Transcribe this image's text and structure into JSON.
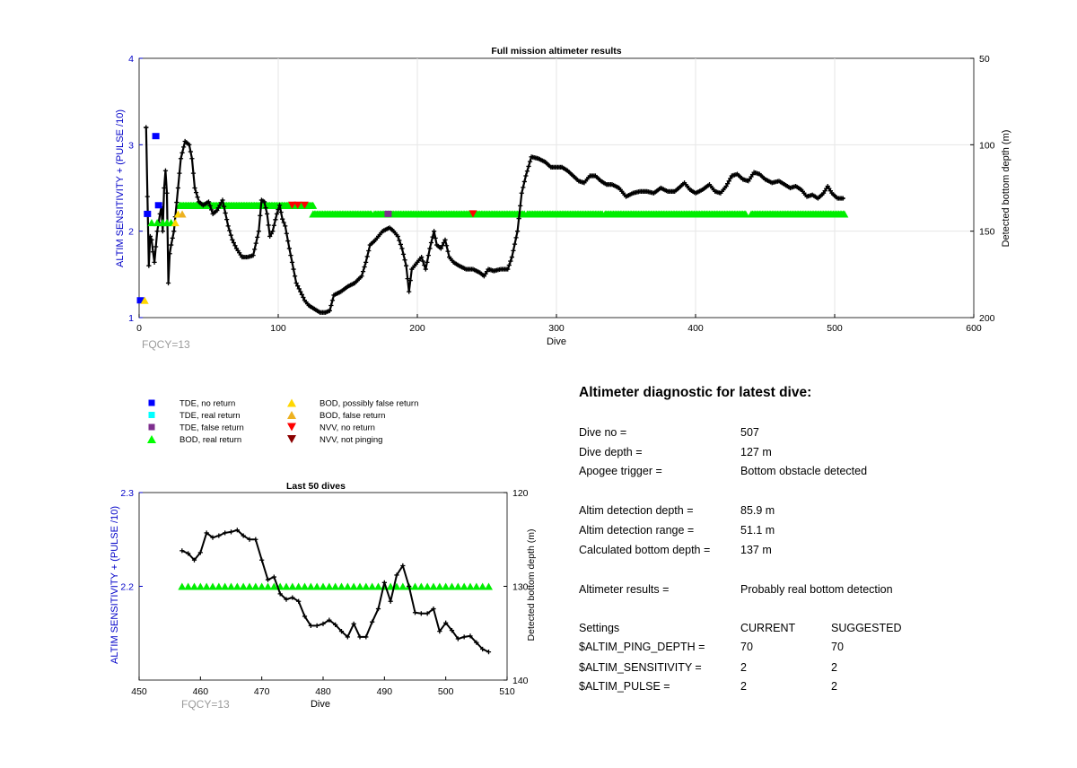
{
  "chart_data": [
    {
      "id": "full",
      "type": "scatter+line",
      "title": "Full mission altimeter results",
      "xlabel": "Dive",
      "ylabel": "ALTIM SENSITIVITY + (PULSE /10)",
      "y2label": "Detected bottom depth (m)",
      "xlim": [
        0,
        600
      ],
      "ylim": [
        1,
        4
      ],
      "y2lim": [
        50,
        200
      ],
      "y2_reversed": true,
      "xticks": [
        0,
        100,
        200,
        300,
        400,
        500,
        600
      ],
      "yticks": [
        1,
        2,
        3,
        4
      ],
      "y2ticks": [
        50,
        100,
        150,
        200
      ],
      "grid": true,
      "annotation": "FQCY=13",
      "bottom_depth_line": [
        [
          5,
          90
        ],
        [
          7,
          170
        ],
        [
          8,
          153
        ],
        [
          9,
          155
        ],
        [
          10,
          162
        ],
        [
          11,
          168
        ],
        [
          13,
          150
        ],
        [
          15,
          140
        ],
        [
          16,
          136
        ],
        [
          17,
          150
        ],
        [
          18,
          125
        ],
        [
          19,
          115
        ],
        [
          20,
          128
        ],
        [
          21,
          180
        ],
        [
          22,
          163
        ],
        [
          23,
          158
        ],
        [
          25,
          150
        ],
        [
          28,
          125
        ],
        [
          30,
          108
        ],
        [
          33,
          98
        ],
        [
          36,
          100
        ],
        [
          38,
          108
        ],
        [
          40,
          125
        ],
        [
          43,
          133
        ],
        [
          46,
          135
        ],
        [
          50,
          133
        ],
        [
          53,
          140
        ],
        [
          56,
          138
        ],
        [
          60,
          132
        ],
        [
          64,
          147
        ],
        [
          67,
          155
        ],
        [
          70,
          160
        ],
        [
          74,
          165
        ],
        [
          78,
          165
        ],
        [
          82,
          164
        ],
        [
          86,
          150
        ],
        [
          88,
          132
        ],
        [
          90,
          133
        ],
        [
          92,
          140
        ],
        [
          94,
          153
        ],
        [
          96,
          150
        ],
        [
          99,
          140
        ],
        [
          101,
          135
        ],
        [
          103,
          143
        ],
        [
          105,
          147
        ],
        [
          108,
          160
        ],
        [
          110,
          168
        ],
        [
          113,
          180
        ],
        [
          116,
          185
        ],
        [
          119,
          190
        ],
        [
          122,
          193
        ],
        [
          126,
          195
        ],
        [
          130,
          197
        ],
        [
          134,
          197
        ],
        [
          137,
          196
        ],
        [
          140,
          187
        ],
        [
          145,
          185
        ],
        [
          150,
          182
        ],
        [
          155,
          180
        ],
        [
          160,
          176
        ],
        [
          163,
          168
        ],
        [
          166,
          158
        ],
        [
          170,
          155
        ],
        [
          175,
          150
        ],
        [
          180,
          148
        ],
        [
          183,
          150
        ],
        [
          186,
          153
        ],
        [
          189,
          160
        ],
        [
          192,
          170
        ],
        [
          194,
          185
        ],
        [
          196,
          172
        ],
        [
          200,
          168
        ],
        [
          203,
          165
        ],
        [
          206,
          172
        ],
        [
          209,
          160
        ],
        [
          212,
          150
        ],
        [
          214,
          158
        ],
        [
          217,
          160
        ],
        [
          220,
          155
        ],
        [
          223,
          165
        ],
        [
          226,
          168
        ],
        [
          230,
          170
        ],
        [
          235,
          172
        ],
        [
          240,
          172
        ],
        [
          245,
          174
        ],
        [
          248,
          176
        ],
        [
          251,
          172
        ],
        [
          255,
          173
        ],
        [
          260,
          172
        ],
        [
          265,
          172
        ],
        [
          268,
          165
        ],
        [
          272,
          150
        ],
        [
          275,
          128
        ],
        [
          278,
          118
        ],
        [
          282,
          107
        ],
        [
          287,
          108
        ],
        [
          292,
          110
        ],
        [
          296,
          113
        ],
        [
          300,
          113
        ],
        [
          304,
          113
        ],
        [
          308,
          115
        ],
        [
          312,
          118
        ],
        [
          316,
          121
        ],
        [
          320,
          122
        ],
        [
          324,
          118
        ],
        [
          328,
          118
        ],
        [
          332,
          121
        ],
        [
          336,
          123
        ],
        [
          340,
          123
        ],
        [
          345,
          125
        ],
        [
          350,
          130
        ],
        [
          355,
          128
        ],
        [
          360,
          127
        ],
        [
          365,
          127
        ],
        [
          370,
          128
        ],
        [
          375,
          125
        ],
        [
          380,
          127
        ],
        [
          385,
          127
        ],
        [
          388,
          125
        ],
        [
          392,
          122
        ],
        [
          396,
          126
        ],
        [
          400,
          128
        ],
        [
          405,
          126
        ],
        [
          410,
          123
        ],
        [
          414,
          127
        ],
        [
          418,
          128
        ],
        [
          422,
          124
        ],
        [
          426,
          118
        ],
        [
          430,
          117
        ],
        [
          434,
          120
        ],
        [
          438,
          121
        ],
        [
          442,
          116
        ],
        [
          446,
          117
        ],
        [
          450,
          120
        ],
        [
          455,
          122
        ],
        [
          460,
          121
        ],
        [
          464,
          123
        ],
        [
          468,
          125
        ],
        [
          472,
          124
        ],
        [
          476,
          126
        ],
        [
          480,
          130
        ],
        [
          484,
          129
        ],
        [
          488,
          131
        ],
        [
          492,
          128
        ],
        [
          495,
          124
        ],
        [
          498,
          128
        ],
        [
          502,
          131
        ],
        [
          507,
          131
        ]
      ],
      "markers": [
        {
          "series": "TDE, no return",
          "points": [
            [
              1,
              1.2
            ],
            [
              6,
              2.2
            ],
            [
              12,
              3.1
            ],
            [
              14,
              2.3
            ]
          ]
        },
        {
          "series": "BOD, real return",
          "points": [
            [
              9,
              2.1
            ],
            [
              13,
              2.1
            ],
            [
              17,
              2.1
            ],
            [
              20,
              2.1
            ],
            [
              23,
              2.1
            ]
          ],
          "line_segments": [
            [
              [
                29,
                125,
                2.3
              ],
              [
                34,
                123,
                2.3
              ],
              [
                125,
                167,
                2.2
              ],
              [
                169,
                277,
                2.2
              ],
              [
                279,
                333,
                2.2
              ],
              [
                335,
                436,
                2.2
              ],
              [
                440,
                507,
                2.2
              ]
            ]
          ]
        },
        {
          "series": "BOD, possibly false return",
          "points": [
            [
              4,
              1.2
            ],
            [
              26,
              2.1
            ],
            [
              28,
              2.2
            ]
          ]
        },
        {
          "series": "BOD, false return",
          "points": [
            [
              31,
              2.2
            ]
          ]
        },
        {
          "series": "NVV, no return",
          "points": [
            [
              110,
              2.3
            ],
            [
              114,
              2.3
            ],
            [
              119,
              2.3
            ],
            [
              240,
              2.2
            ]
          ]
        },
        {
          "series": "TDE, false return",
          "points": [
            [
              179,
              2.2
            ]
          ]
        }
      ]
    },
    {
      "id": "last50",
      "type": "scatter+line",
      "title": "Last 50 dives",
      "xlabel": "Dive",
      "ylabel": "ALTIM SENSITIVITY + (PULSE /10)",
      "y2label": "Detected bottom depth (m)",
      "xlim": [
        450,
        510
      ],
      "ylim": [
        2.1,
        2.3
      ],
      "y2lim": [
        120,
        140
      ],
      "y2_reversed": true,
      "xticks": [
        450,
        460,
        470,
        480,
        490,
        500,
        510
      ],
      "yticks": [
        2.2,
        2.3
      ],
      "y2ticks": [
        120,
        130,
        140
      ],
      "annotation": "FQCY=13",
      "bottom_depth": {
        "x": [
          457,
          458,
          459,
          460,
          461,
          462,
          463,
          464,
          465,
          466,
          467,
          468,
          469,
          470,
          471,
          472,
          473,
          474,
          475,
          476,
          477,
          478,
          479,
          480,
          481,
          482,
          483,
          484,
          485,
          486,
          487,
          488,
          489,
          490,
          491,
          492,
          493,
          494,
          495,
          496,
          497,
          498,
          499,
          500,
          501,
          502,
          503,
          504,
          505,
          506,
          507
        ],
        "y": [
          126.2,
          126.5,
          127.2,
          126.4,
          124.3,
          124.8,
          124.6,
          124.3,
          124.2,
          124.0,
          124.6,
          125.0,
          125.0,
          127.2,
          129.3,
          129.0,
          130.8,
          131.4,
          131.2,
          131.6,
          133.2,
          134.2,
          134.2,
          134.0,
          133.6,
          134.1,
          134.8,
          135.4,
          134.0,
          135.4,
          135.4,
          133.8,
          132.4,
          129.6,
          131.6,
          128.8,
          127.8,
          130.0,
          132.8,
          132.9,
          132.9,
          132.4,
          134.8,
          133.9,
          134.7,
          135.6,
          135.4,
          135.3,
          136.0,
          136.7,
          137.0
        ]
      },
      "bod_real_return": {
        "x_start": 457,
        "x_end": 482,
        "x2_start": 483,
        "x2_end": 507,
        "y": 2.2
      }
    }
  ],
  "legend": {
    "col1": [
      {
        "label": "TDE, no return",
        "color": "#0000ff",
        "icon": "square"
      },
      {
        "label": "TDE, real return",
        "color": "#00ffff",
        "icon": "square"
      },
      {
        "label": "TDE, false return",
        "color": "#7e2f8e",
        "icon": "square"
      },
      {
        "label": "BOD, real return",
        "color": "#00ff00",
        "icon": "triangle-up"
      }
    ],
    "col2": [
      {
        "label": "BOD, possibly false return",
        "color": "#ffd700",
        "icon": "triangle-up"
      },
      {
        "label": "BOD, false return",
        "color": "#edb120",
        "icon": "triangle-up"
      },
      {
        "label": "NVV, no return",
        "color": "#ff0000",
        "icon": "triangle-down"
      },
      {
        "label": "NVV, not pinging",
        "color": "#8b0000",
        "icon": "triangle-down"
      }
    ]
  },
  "diagnostic": {
    "title": "Altimeter diagnostic for latest dive:",
    "rows": [
      {
        "label": "Dive no =",
        "value": "507",
        "suggested": ""
      },
      {
        "label": "Dive depth =",
        "value": "127 m",
        "suggested": ""
      },
      {
        "label": "Apogee trigger =",
        "value": "Bottom obstacle detected",
        "suggested": ""
      },
      {
        "label": "Altim detection depth =",
        "value": "85.9 m",
        "suggested": ""
      },
      {
        "label": "Altim detection range =",
        "value": "51.1 m",
        "suggested": ""
      },
      {
        "label": "Calculated bottom depth =",
        "value": "137 m",
        "suggested": ""
      },
      {
        "label": "Altimeter results =",
        "value": "Probably real bottom detection",
        "suggested": ""
      },
      {
        "label": "Settings",
        "value": "CURRENT",
        "suggested": "SUGGESTED"
      },
      {
        "label": "$ALTIM_PING_DEPTH =",
        "value": "70",
        "suggested": "70"
      },
      {
        "label": "$ALTIM_SENSITIVITY =",
        "value": "2",
        "suggested": "2"
      },
      {
        "label": "$ALTIM_PULSE =",
        "value": "2",
        "suggested": "2"
      }
    ]
  },
  "colors": {
    "axis_blue": "#0000c8",
    "grid": "#e6e6e6",
    "line": "#000000",
    "fqcy": "#9a9a9a",
    "bod_green": "#00ee00"
  }
}
